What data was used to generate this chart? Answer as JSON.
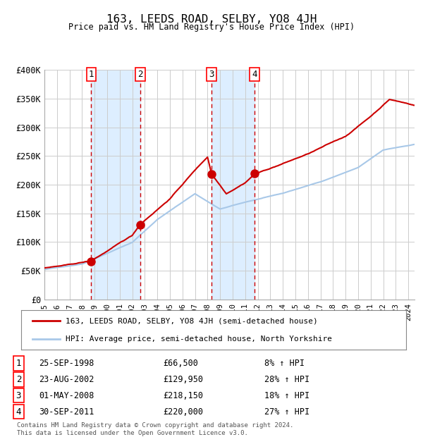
{
  "title": "163, LEEDS ROAD, SELBY, YO8 4JH",
  "subtitle": "Price paid vs. HM Land Registry's House Price Index (HPI)",
  "legend_line1": "163, LEEDS ROAD, SELBY, YO8 4JH (semi-detached house)",
  "legend_line2": "HPI: Average price, semi-detached house, North Yorkshire",
  "footer": "Contains HM Land Registry data © Crown copyright and database right 2024.\nThis data is licensed under the Open Government Licence v3.0.",
  "transactions": [
    {
      "label": "1",
      "date": "25-SEP-1998",
      "price": 66500,
      "pct": "8%",
      "x_year": 1998.73
    },
    {
      "label": "2",
      "date": "23-AUG-2002",
      "price": 129950,
      "pct": "28%",
      "x_year": 2002.64
    },
    {
      "label": "3",
      "date": "01-MAY-2008",
      "price": 218150,
      "pct": "18%",
      "x_year": 2008.33
    },
    {
      "label": "4",
      "date": "30-SEP-2011",
      "price": 220000,
      "pct": "27%",
      "x_year": 2011.75
    }
  ],
  "hpi_color": "#a8c8e8",
  "price_color": "#cc0000",
  "shade_color": "#ddeeff",
  "vline_color": "#cc0000",
  "background_color": "#ffffff",
  "grid_color": "#cccccc",
  "ylim": [
    0,
    400000
  ],
  "xlim_start": 1995.0,
  "xlim_end": 2024.5,
  "yticks": [
    0,
    50000,
    100000,
    150000,
    200000,
    250000,
    300000,
    350000,
    400000
  ],
  "ytick_labels": [
    "£0",
    "£50K",
    "£100K",
    "£150K",
    "£200K",
    "£250K",
    "£300K",
    "£350K",
    "£400K"
  ]
}
